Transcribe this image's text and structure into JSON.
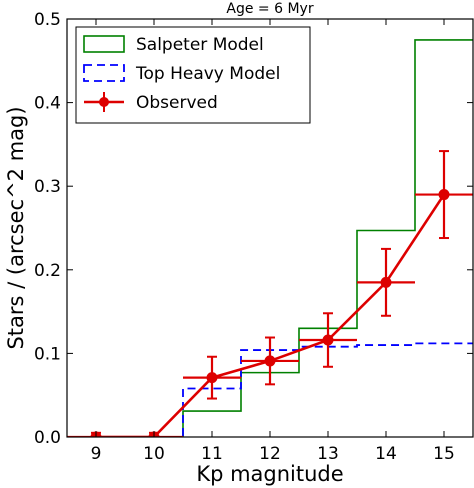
{
  "chart_data": {
    "type": "line",
    "title": "Age = 6 Myr",
    "xlabel": "Kp magnitude",
    "ylabel": "Stars / (arcsec^2 mag)",
    "xlim": [
      8.5,
      15.5
    ],
    "ylim": [
      0.0,
      0.5
    ],
    "xticks": [
      "9",
      "10",
      "11",
      "12",
      "13",
      "14",
      "15"
    ],
    "yticks": [
      "0.0",
      "0.1",
      "0.2",
      "0.3",
      "0.4",
      "0.5"
    ],
    "grid": false,
    "legend_position": "top-left",
    "series": [
      {
        "name": "Salpeter Model",
        "style": "step",
        "color": "#008000",
        "bin_edges": [
          8.5,
          9.5,
          10.5,
          11.5,
          12.5,
          13.5,
          14.5,
          15.5
        ],
        "values": [
          0.0,
          0.0,
          0.031,
          0.077,
          0.13,
          0.247,
          0.475
        ]
      },
      {
        "name": "Top Heavy Model",
        "style": "step-dashed",
        "color": "#0000ff",
        "bin_edges": [
          8.5,
          9.5,
          10.5,
          11.5,
          12.5,
          13.5,
          14.5,
          15.5
        ],
        "values": [
          0.0,
          0.0,
          0.058,
          0.104,
          0.108,
          0.11,
          0.112
        ]
      },
      {
        "name": "Observed",
        "style": "line-errorbar",
        "color": "#dd0000",
        "x": [
          9,
          10,
          11,
          12,
          13,
          14,
          15
        ],
        "y": [
          0.0,
          0.0,
          0.071,
          0.091,
          0.116,
          0.185,
          0.29
        ],
        "yerr": [
          0.005,
          0.005,
          0.025,
          0.028,
          0.032,
          0.04,
          0.052
        ],
        "xerr": [
          0.5,
          0.5,
          0.5,
          0.5,
          0.5,
          0.5,
          0.5
        ]
      }
    ]
  }
}
